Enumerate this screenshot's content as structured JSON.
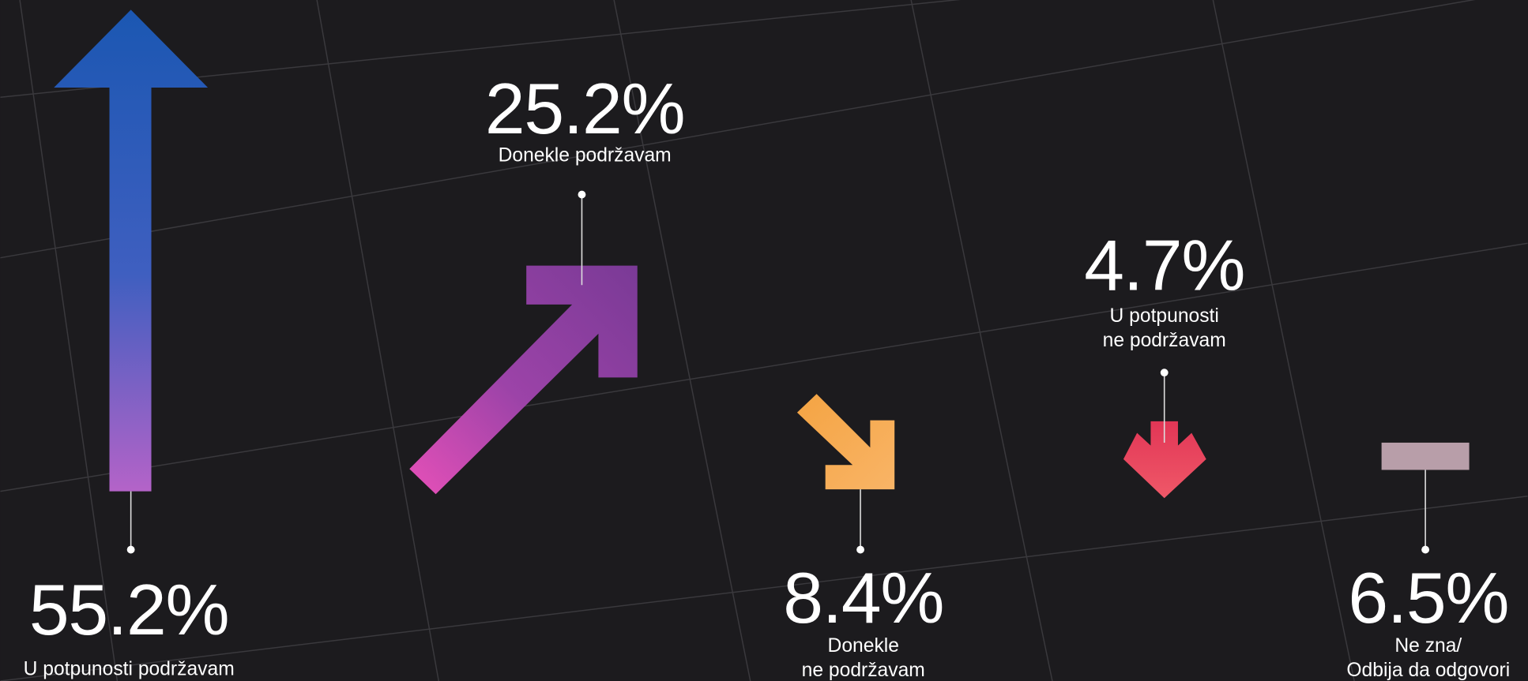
{
  "items": [
    {
      "percent": "55.2%",
      "lines": [
        "U potpunosti podržavam"
      ]
    },
    {
      "percent": "25.2%",
      "lines": [
        "Donekle podržavam"
      ]
    },
    {
      "percent": "8.4%",
      "lines": [
        "Donekle",
        "ne podržavam"
      ]
    },
    {
      "percent": "4.7%",
      "lines": [
        "U potpunosti",
        "ne podržavam"
      ]
    },
    {
      "percent": "6.5%",
      "lines": [
        "Ne zna/",
        "Odbija da odgovori"
      ]
    }
  ]
}
